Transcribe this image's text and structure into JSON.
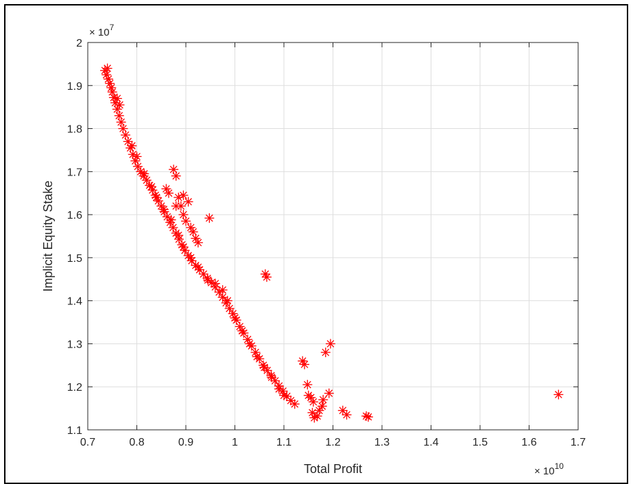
{
  "chart_data": {
    "type": "scatter",
    "title": "",
    "xlabel": "Total Profit",
    "ylabel": "Implicit Equity Stake",
    "x_exponent_label": "10",
    "y_exponent_label": "7",
    "x_exponent_text": "× 10",
    "y_exponent_text": "× 10",
    "xlim": [
      0.7,
      1.7
    ],
    "ylim": [
      1.1,
      2.0
    ],
    "x_scale_factor": 10000000000,
    "y_scale_factor": 10000000,
    "xticks": [
      "0.7",
      "0.8",
      "0.9",
      "1",
      "1.1",
      "1.2",
      "1.3",
      "1.4",
      "1.5",
      "1.6",
      "1.7"
    ],
    "yticks": [
      "1.1",
      "1.2",
      "1.3",
      "1.4",
      "1.5",
      "1.6",
      "1.7",
      "1.8",
      "1.9",
      "2"
    ],
    "grid": true,
    "marker": "asterisk",
    "marker_color": "#ff0000",
    "series": [
      {
        "points": [
          [
            0.735,
            1.935
          ],
          [
            0.738,
            1.925
          ],
          [
            0.74,
            1.94
          ],
          [
            0.742,
            1.915
          ],
          [
            0.745,
            1.905
          ],
          [
            0.748,
            1.895
          ],
          [
            0.75,
            1.885
          ],
          [
            0.753,
            1.872
          ],
          [
            0.756,
            1.86
          ],
          [
            0.76,
            1.845
          ],
          [
            0.764,
            1.83
          ],
          [
            0.768,
            1.815
          ],
          [
            0.772,
            1.8
          ],
          [
            0.777,
            1.785
          ],
          [
            0.782,
            1.77
          ],
          [
            0.787,
            1.755
          ],
          [
            0.792,
            1.74
          ],
          [
            0.797,
            1.725
          ],
          [
            0.802,
            1.712
          ],
          [
            0.808,
            1.7
          ],
          [
            0.814,
            1.69
          ],
          [
            0.82,
            1.68
          ],
          [
            0.826,
            1.668
          ],
          [
            0.832,
            1.657
          ],
          [
            0.838,
            1.645
          ],
          [
            0.844,
            1.632
          ],
          [
            0.85,
            1.62
          ],
          [
            0.856,
            1.607
          ],
          [
            0.862,
            1.595
          ],
          [
            0.868,
            1.582
          ],
          [
            0.874,
            1.57
          ],
          [
            0.88,
            1.557
          ],
          [
            0.886,
            1.543
          ],
          [
            0.892,
            1.53
          ],
          [
            0.898,
            1.517
          ],
          [
            0.905,
            1.505
          ],
          [
            0.912,
            1.493
          ],
          [
            0.92,
            1.482
          ],
          [
            0.928,
            1.472
          ],
          [
            0.936,
            1.462
          ],
          [
            0.944,
            1.452
          ],
          [
            0.952,
            1.442
          ],
          [
            0.96,
            1.432
          ],
          [
            0.968,
            1.42
          ],
          [
            0.975,
            1.408
          ],
          [
            0.982,
            1.395
          ],
          [
            0.989,
            1.382
          ],
          [
            0.996,
            1.37
          ],
          [
            1.003,
            1.355
          ],
          [
            1.01,
            1.34
          ],
          [
            1.018,
            1.325
          ],
          [
            1.026,
            1.31
          ],
          [
            1.034,
            1.295
          ],
          [
            1.042,
            1.28
          ],
          [
            1.05,
            1.265
          ],
          [
            1.058,
            1.25
          ],
          [
            1.066,
            1.238
          ],
          [
            1.074,
            1.226
          ],
          [
            1.082,
            1.214
          ],
          [
            1.09,
            1.202
          ],
          [
            1.098,
            1.19
          ],
          [
            1.106,
            1.178
          ],
          [
            1.114,
            1.168
          ],
          [
            1.122,
            1.16
          ],
          [
            0.76,
            1.87
          ],
          [
            0.765,
            1.855
          ],
          [
            0.79,
            1.76
          ],
          [
            0.8,
            1.735
          ],
          [
            0.815,
            1.695
          ],
          [
            0.83,
            1.665
          ],
          [
            0.84,
            1.64
          ],
          [
            0.855,
            1.612
          ],
          [
            0.87,
            1.588
          ],
          [
            0.885,
            1.552
          ],
          [
            0.895,
            1.525
          ],
          [
            0.91,
            1.5
          ],
          [
            0.925,
            1.478
          ],
          [
            0.945,
            1.448
          ],
          [
            0.96,
            1.44
          ],
          [
            0.975,
            1.425
          ],
          [
            0.985,
            1.4
          ],
          [
            1.0,
            1.36
          ],
          [
            1.015,
            1.33
          ],
          [
            1.03,
            1.3
          ],
          [
            1.045,
            1.27
          ],
          [
            1.06,
            1.245
          ],
          [
            1.075,
            1.222
          ],
          [
            1.09,
            1.195
          ],
          [
            1.1,
            1.18
          ],
          [
            0.86,
            1.66
          ],
          [
            0.865,
            1.65
          ],
          [
            0.875,
            1.705
          ],
          [
            0.88,
            1.69
          ],
          [
            0.885,
            1.64
          ],
          [
            0.89,
            1.62
          ],
          [
            0.895,
            1.6
          ],
          [
            0.9,
            1.585
          ],
          [
            0.905,
            1.63
          ],
          [
            0.91,
            1.57
          ],
          [
            0.915,
            1.56
          ],
          [
            0.92,
            1.545
          ],
          [
            0.925,
            1.535
          ],
          [
            0.88,
            1.62
          ],
          [
            0.895,
            1.645
          ],
          [
            0.948,
            1.592
          ],
          [
            1.062,
            1.462
          ],
          [
            1.065,
            1.455
          ],
          [
            1.138,
            1.26
          ],
          [
            1.142,
            1.252
          ],
          [
            1.148,
            1.205
          ],
          [
            1.15,
            1.18
          ],
          [
            1.155,
            1.175
          ],
          [
            1.16,
            1.165
          ],
          [
            1.158,
            1.14
          ],
          [
            1.162,
            1.128
          ],
          [
            1.168,
            1.132
          ],
          [
            1.172,
            1.145
          ],
          [
            1.178,
            1.155
          ],
          [
            1.18,
            1.17
          ],
          [
            1.185,
            1.28
          ],
          [
            1.195,
            1.3
          ],
          [
            1.192,
            1.185
          ],
          [
            1.22,
            1.145
          ],
          [
            1.228,
            1.135
          ],
          [
            1.268,
            1.132
          ],
          [
            1.272,
            1.13
          ],
          [
            1.66,
            1.182
          ]
        ]
      }
    ]
  }
}
